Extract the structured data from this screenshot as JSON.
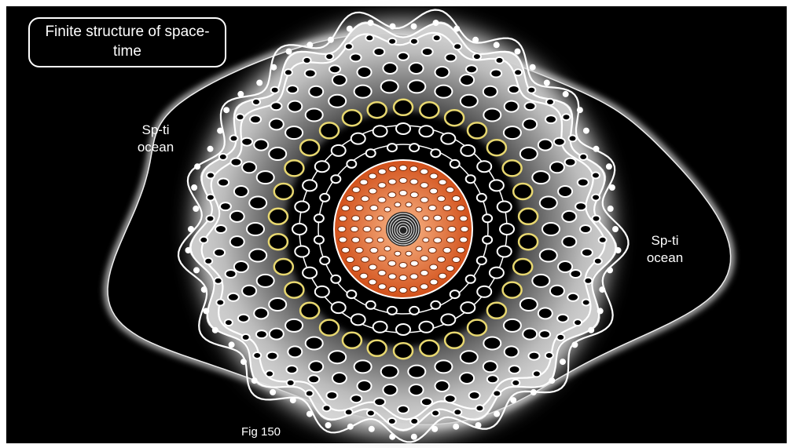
{
  "title": "Finite structure of space-time",
  "labels": [
    "Sp-ti ocean",
    "Sp-ti ocean"
  ],
  "caption": "Fig 150"
}
